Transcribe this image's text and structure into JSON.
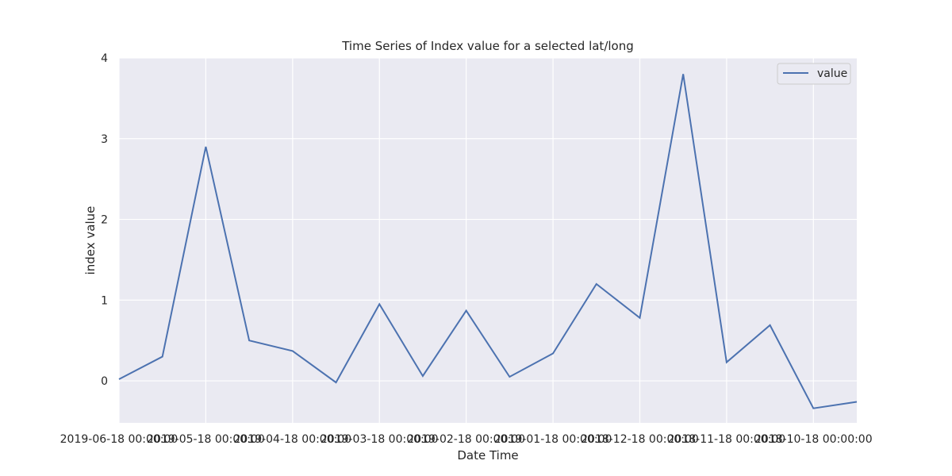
{
  "chart_data": {
    "type": "line",
    "title": "Time Series of Index value for a selected lat/long",
    "xlabel": "Date Time",
    "ylabel": "index value",
    "x": [
      "2019-06-18",
      "2019-06-03",
      "2019-05-18",
      "2019-05-03",
      "2019-04-18",
      "2019-04-03",
      "2019-03-18",
      "2019-03-03",
      "2019-02-18",
      "2019-02-03",
      "2019-01-18",
      "2019-01-03",
      "2018-12-18",
      "2018-12-03",
      "2018-11-18",
      "2018-11-03",
      "2018-10-18",
      "2018-10-03"
    ],
    "x_tick_labels": [
      "2019-06-18 00:00:00",
      "2019-05-18 00:00:00",
      "2019-04-18 00:00:00",
      "2019-03-18 00:00:00",
      "2019-02-18 00:00:00",
      "2019-01-18 00:00:00",
      "2018-12-18 00:00:00",
      "2018-11-18 00:00:00",
      "2018-10-18 00:00:00"
    ],
    "series": [
      {
        "name": "value",
        "color": "#4c72b0",
        "values": [
          0.02,
          0.3,
          2.9,
          0.5,
          0.37,
          -0.02,
          0.95,
          0.06,
          0.87,
          0.05,
          0.34,
          1.2,
          0.78,
          3.8,
          0.23,
          0.69,
          -0.34,
          -0.26
        ]
      }
    ],
    "ylim": [
      -0.52,
      4.0
    ],
    "y_ticks": [
      0,
      1,
      2,
      3,
      4
    ],
    "grid": true,
    "legend": "top-right",
    "background": "#eaeaf2"
  }
}
